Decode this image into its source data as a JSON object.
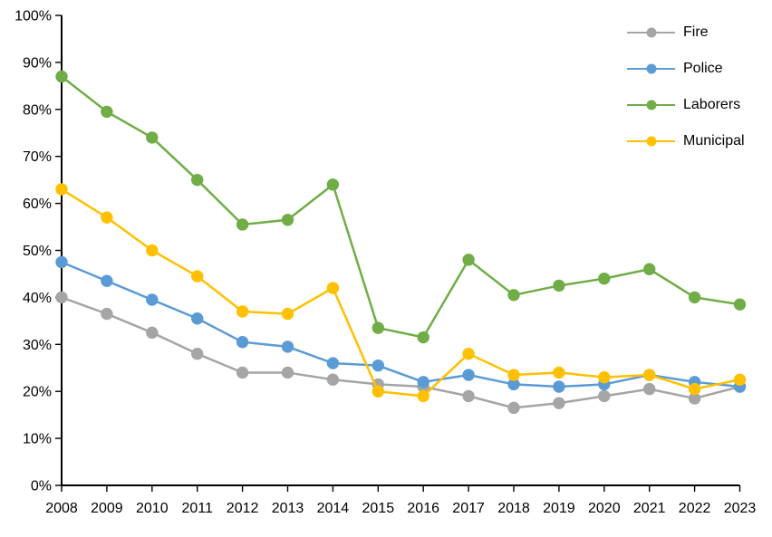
{
  "chart_data": {
    "type": "line",
    "title": "",
    "xlabel": "",
    "ylabel": "",
    "categories": [
      "2008",
      "2009",
      "2010",
      "2011",
      "2012",
      "2013",
      "2014",
      "2015",
      "2016",
      "2017",
      "2018",
      "2019",
      "2020",
      "2021",
      "2022",
      "2023"
    ],
    "series": [
      {
        "name": "Fire",
        "color": "#A5A5A5",
        "values": [
          40,
          36.5,
          32.5,
          28,
          24,
          24,
          22.5,
          21.5,
          21,
          19,
          16.5,
          17.5,
          19,
          20.5,
          18.5,
          21
        ]
      },
      {
        "name": "Police",
        "color": "#5B9BD5",
        "values": [
          47.5,
          43.5,
          39.5,
          35.5,
          30.5,
          29.5,
          26,
          25.5,
          22,
          23.5,
          21.5,
          21,
          21.5,
          23.5,
          22,
          21
        ]
      },
      {
        "name": "Laborers",
        "color": "#70AD47",
        "values": [
          87,
          79.5,
          74,
          65,
          55.5,
          56.5,
          64,
          33.5,
          31.5,
          48,
          40.5,
          42.5,
          44,
          46,
          40,
          38.5
        ]
      },
      {
        "name": "Municipal",
        "color": "#FFC000",
        "values": [
          63,
          57,
          50,
          44.5,
          37,
          36.5,
          42,
          20,
          19,
          28,
          23.5,
          24,
          23,
          23.5,
          20.5,
          22.5
        ]
      }
    ],
    "ylim": [
      0,
      100
    ],
    "ytick_step": 10,
    "ytick_labels": [
      "0%",
      "10%",
      "20%",
      "30%",
      "40%",
      "50%",
      "60%",
      "70%",
      "80%",
      "90%",
      "100%"
    ],
    "grid": false,
    "legend_position": "top-right",
    "axis_color": "#000000",
    "text_color": "#000000"
  }
}
